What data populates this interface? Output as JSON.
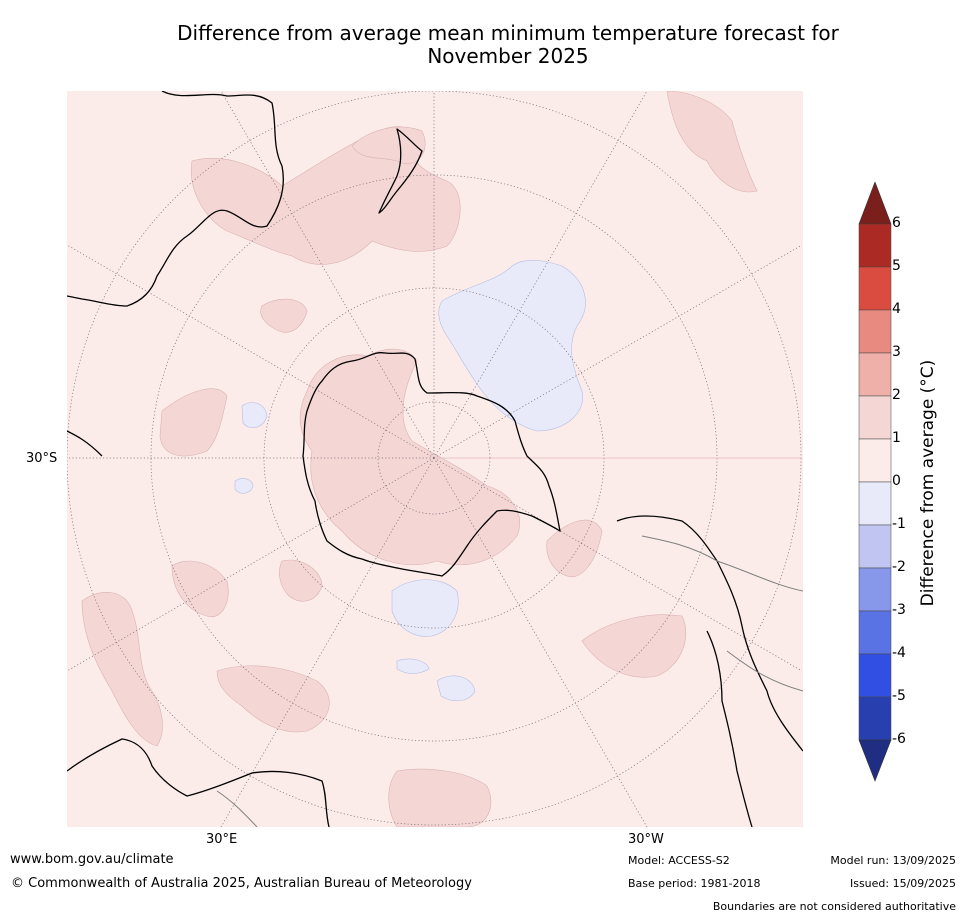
{
  "title": {
    "line1": "Difference from average mean minimum temperature forecast for",
    "line2": "November 2025"
  },
  "axes": {
    "lat_label": "30°S",
    "lon_labels": [
      "30°E",
      "30°W"
    ]
  },
  "colorbar": {
    "label": "Difference from average (°C)",
    "ticks": [
      "6",
      "5",
      "4",
      "3",
      "2",
      "1",
      "0",
      "-1",
      "-2",
      "-3",
      "-4",
      "-5",
      "-6"
    ],
    "bins": [
      {
        "range": "5 to 6",
        "color": "#ab2a23"
      },
      {
        "range": "4 to 5",
        "color": "#db4c40"
      },
      {
        "range": "3 to 4",
        "color": "#e88a80"
      },
      {
        "range": "2 to 3",
        "color": "#efb0aa"
      },
      {
        "range": "1 to 2",
        "color": "#f4d6d5"
      },
      {
        "range": "0 to 1",
        "color": "#fbecea"
      },
      {
        "range": "-1 to 0",
        "color": "#e8eaf9"
      },
      {
        "range": "-2 to -1",
        "color": "#c0c6f1"
      },
      {
        "range": "-3 to -2",
        "color": "#8797ea"
      },
      {
        "range": "-4 to -3",
        "color": "#5a73e4"
      },
      {
        "range": "-5 to -4",
        "color": "#3150e3"
      },
      {
        "range": "-6 to -5",
        "color": "#2840af"
      }
    ],
    "over_color": "#7b1f1c",
    "under_color": "#1f2e82"
  },
  "footer": {
    "url": "www.bom.gov.au/climate",
    "copyright": "© Commonwealth of Australia 2025, Australian Bureau of Meteorology",
    "model": "Model: ACCESS-S2",
    "base_period": "Base period: 1981-2018",
    "model_run": "Model run: 13/09/2025",
    "issued": "Issued: 15/09/2025",
    "boundaries": "Boundaries are not considered authoritative"
  }
}
